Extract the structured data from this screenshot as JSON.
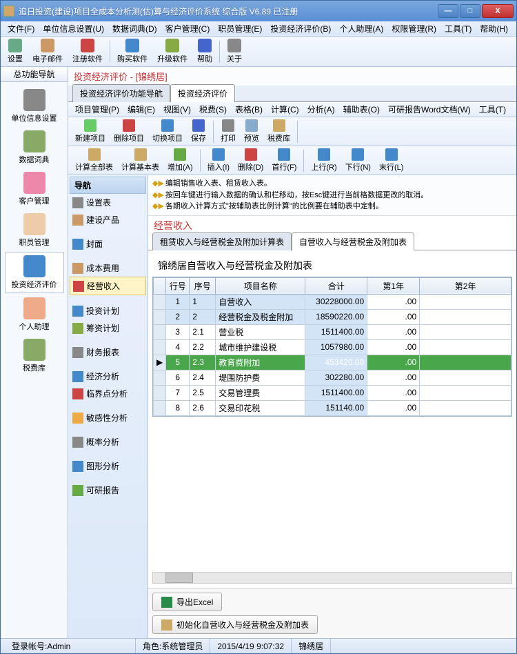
{
  "window": {
    "title": "追日投资(建设)项目全成本分析测(估)算与经济评价系统 综合版 V6.89 已注册"
  },
  "menubar": [
    "文件(F)",
    "单位信息设置(U)",
    "数据词典(D)",
    "客户管理(C)",
    "职员管理(E)",
    "投资经济评价(B)",
    "个人助理(A)",
    "权限管理(R)",
    "工具(T)",
    "帮助(H)"
  ],
  "toolbar1": [
    {
      "label": "设置",
      "color": "#6a8"
    },
    {
      "label": "电子邮件",
      "color": "#c96"
    },
    {
      "label": "注册软件",
      "color": "#c44",
      "sep": true
    },
    {
      "label": "购买软件",
      "color": "#48c"
    },
    {
      "label": "升级软件",
      "color": "#8a4"
    },
    {
      "label": "帮助",
      "color": "#46c",
      "sep": true
    },
    {
      "label": "关于",
      "color": "#888"
    }
  ],
  "leftTabHeader": "总功能导航",
  "leftIcons": [
    {
      "label": "单位信息设置",
      "color": "#888"
    },
    {
      "label": "数据词典",
      "color": "#8a6"
    },
    {
      "label": "客户管理",
      "color": "#e8a"
    },
    {
      "label": "职员管理",
      "color": "#eca"
    },
    {
      "label": "投资经济评价",
      "color": "#48c",
      "active": true
    },
    {
      "label": "个人助理",
      "color": "#ea8"
    },
    {
      "label": "税费库",
      "color": "#8a6"
    }
  ],
  "redTitle": "投资经济评价 - [锦绣居]",
  "tabs1": [
    {
      "label": "投资经济评价功能导航"
    },
    {
      "label": "投资经济评价",
      "active": true
    }
  ],
  "submenu": [
    "项目管理(P)",
    "编辑(E)",
    "视图(V)",
    "税费(S)",
    "表格(B)",
    "计算(C)",
    "分析(A)",
    "辅助表(O)",
    "可研报告Word文档(W)",
    "工具(T)"
  ],
  "toolbar2": [
    {
      "label": "新建项目",
      "color": "#6c6"
    },
    {
      "label": "删除项目",
      "color": "#c44"
    },
    {
      "label": "切换项目",
      "color": "#48c"
    },
    {
      "label": "保存",
      "color": "#46c",
      "sep": true
    },
    {
      "label": "打印",
      "color": "#888"
    },
    {
      "label": "预览",
      "color": "#8ac"
    },
    {
      "label": "税费库",
      "color": "#ca6",
      "sep": true
    }
  ],
  "toolbar3": [
    {
      "label": "计算全部表",
      "color": "#ca6"
    },
    {
      "label": "计算基本表",
      "color": "#ca6"
    },
    {
      "label": "增加(A)",
      "color": "#6a4",
      "sep": true
    },
    {
      "label": "插入(I)",
      "color": "#48c"
    },
    {
      "label": "删除(D)",
      "color": "#c44"
    },
    {
      "label": "首行(F)",
      "color": "#48c",
      "sep": true
    },
    {
      "label": "上行(R)",
      "color": "#48c"
    },
    {
      "label": "下行(N)",
      "color": "#48c"
    },
    {
      "label": "末行(L)",
      "color": "#48c"
    }
  ],
  "navHeader": "导航",
  "navItems": [
    {
      "label": "设置表",
      "color": "#888"
    },
    {
      "label": "建设产品",
      "color": "#c96"
    },
    {
      "space": true
    },
    {
      "label": "封面",
      "color": "#48c"
    },
    {
      "space": true
    },
    {
      "label": "成本费用",
      "color": "#c96"
    },
    {
      "label": "经营收入",
      "color": "#c44",
      "sel": true
    },
    {
      "space": true
    },
    {
      "label": "投资计划",
      "color": "#48c"
    },
    {
      "label": "筹资计划",
      "color": "#8a4"
    },
    {
      "space": true
    },
    {
      "label": "财务报表",
      "color": "#888"
    },
    {
      "space": true
    },
    {
      "label": "经济分析",
      "color": "#48c"
    },
    {
      "label": "临界点分析",
      "color": "#c44"
    },
    {
      "space": true
    },
    {
      "label": "敏感性分析",
      "color": "#ea4"
    },
    {
      "space": true
    },
    {
      "label": "概率分析",
      "color": "#888"
    },
    {
      "space": true
    },
    {
      "label": "图形分析",
      "color": "#48c"
    },
    {
      "space": true
    },
    {
      "label": "可研报告",
      "color": "#6a4"
    }
  ],
  "hints": [
    "编辑销售收入表、租赁收入表。",
    "按回车键进行输入数据的确认和栏移动，按Esc键进行当前格数据更改的取消。",
    "各期收入计算方式\"按辅助表比例计算\"的比例要在辅助表中定制。"
  ],
  "sectionTitle": "经营收入",
  "tabs2": [
    {
      "label": "租赁收入与经营税金及附加计算表"
    },
    {
      "label": "自营收入与经营税金及附加表",
      "active": true
    }
  ],
  "gridTitle": "锦绣居自营收入与经营税金及附加表",
  "gridHeaders": {
    "row": "行号",
    "seq": "序号",
    "name": "项目名称",
    "total": "合计",
    "y1": "第1年",
    "y2": "第2年"
  },
  "gridRows": [
    {
      "mark": "",
      "row": "1",
      "seq": "1",
      "name": "自营收入",
      "total": "30228000.00",
      "y1": ".00",
      "hl": false,
      "shade": true
    },
    {
      "mark": "",
      "row": "2",
      "seq": "2",
      "name": "经营税金及税金附加",
      "total": "18590220.00",
      "y1": ".00",
      "hl": false,
      "shade": true
    },
    {
      "mark": "",
      "row": "3",
      "seq": "2.1",
      "name": "营业税",
      "total": "1511400.00",
      "y1": ".00"
    },
    {
      "mark": "",
      "row": "4",
      "seq": "2.2",
      "name": "城市维护建设税",
      "total": "1057980.00",
      "y1": ".00"
    },
    {
      "mark": "▶",
      "row": "5",
      "seq": "2.3",
      "name": "教育费附加",
      "total": "453420.00",
      "y1": ".00",
      "hl": true
    },
    {
      "mark": "",
      "row": "6",
      "seq": "2.4",
      "name": "堤围防护费",
      "total": "302280.00",
      "y1": ".00"
    },
    {
      "mark": "",
      "row": "7",
      "seq": "2.5",
      "name": "交易管理费",
      "total": "1511400.00",
      "y1": ".00"
    },
    {
      "mark": "",
      "row": "8",
      "seq": "2.6",
      "name": "交易印花税",
      "total": "151140.00",
      "y1": ".00"
    }
  ],
  "exportBtn": "导出Excel",
  "initBtn": "初始化自营收入与经营税金及附加表",
  "status": {
    "login": "登录帐号:Admin",
    "role": "角色:系统管理员",
    "datetime": "2015/4/19 9:07:32",
    "project": "锦绣居"
  }
}
